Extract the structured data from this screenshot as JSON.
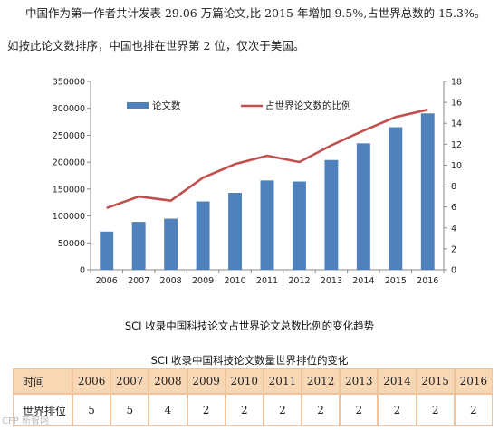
{
  "document": {
    "paragraph1": "中国作为第一作者共计发表 29.06 万篇论文,比 2015 年增加 9.5%,占世界总数的 15.3%。",
    "paragraph2": "如按此论文数排序，中国也排在世界第 2 位，仅次于美国。",
    "chart_caption": "SCI 收录中国科技论文占世界论文总数比例的变化趋势",
    "table_caption": "SCI 收录中国科技论文数量世界排位的变化"
  },
  "chart_data": {
    "type": "bar",
    "categories": [
      "2006",
      "2007",
      "2008",
      "2009",
      "2010",
      "2011",
      "2012",
      "2013",
      "2014",
      "2015",
      "2016"
    ],
    "series": [
      {
        "name": "论文数",
        "type": "bar",
        "axis": "left",
        "color": "#4f81bd",
        "values": [
          71000,
          89000,
          95000,
          127000,
          143000,
          166000,
          164000,
          204000,
          235000,
          265000,
          290600
        ]
      },
      {
        "name": "占世界论文数的比例",
        "type": "line",
        "axis": "right",
        "color": "#c0504d",
        "values": [
          5.9,
          7.0,
          6.6,
          8.8,
          10.1,
          10.9,
          10.3,
          11.9,
          13.3,
          14.6,
          15.3
        ]
      }
    ],
    "ylim": [
      0,
      350000
    ],
    "y2lim": [
      0,
      18
    ],
    "yticks": [
      "0",
      "50000",
      "100000",
      "150000",
      "200000",
      "250000",
      "300000",
      "350000"
    ],
    "y2ticks": [
      "0",
      "2",
      "4",
      "6",
      "8",
      "10",
      "12",
      "14",
      "16",
      "18"
    ],
    "legend": "top-left"
  },
  "table": {
    "header_label": "时间",
    "row_label": "世界排位",
    "years": [
      "2006",
      "2007",
      "2008",
      "2009",
      "2010",
      "2011",
      "2012",
      "2013",
      "2014",
      "2015",
      "2016"
    ],
    "ranks": [
      "5",
      "5",
      "4",
      "2",
      "2",
      "2",
      "2",
      "2",
      "2",
      "2",
      "2"
    ]
  },
  "watermark": "CFP 新智网"
}
